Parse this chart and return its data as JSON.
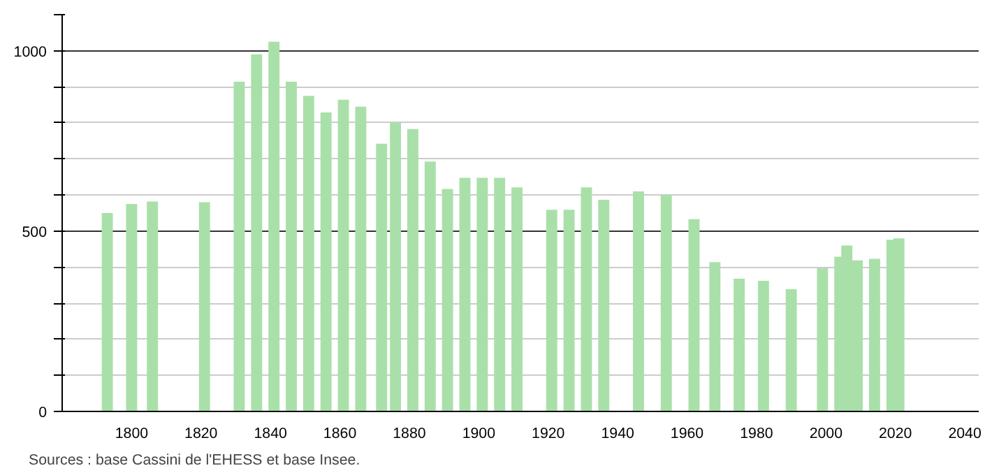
{
  "chart_data": {
    "type": "bar",
    "x": [
      1793,
      1800,
      1806,
      1821,
      1831,
      1836,
      1841,
      1846,
      1851,
      1856,
      1861,
      1866,
      1872,
      1876,
      1881,
      1886,
      1891,
      1896,
      1901,
      1906,
      1911,
      1921,
      1926,
      1931,
      1936,
      1946,
      1954,
      1962,
      1968,
      1975,
      1982,
      1990,
      1999,
      2004,
      2006,
      2009,
      2014,
      2019,
      2021
    ],
    "values": [
      550,
      575,
      582,
      580,
      914,
      990,
      1025,
      914,
      875,
      829,
      864,
      845,
      742,
      800,
      783,
      693,
      617,
      648,
      648,
      648,
      621,
      559,
      559,
      621,
      587,
      610,
      601,
      533,
      414,
      368,
      362,
      339,
      397,
      429,
      460,
      419,
      423,
      476,
      480
    ],
    "color": "#a9e0a9",
    "xlim": [
      1780,
      2044
    ],
    "ylim": [
      0,
      1100
    ],
    "xticks": [
      1800,
      1820,
      1840,
      1860,
      1880,
      1900,
      1920,
      1940,
      1960,
      1980,
      2000,
      2020,
      2040
    ],
    "yticks": [
      0,
      {
        "value": 100,
        "label": null
      },
      {
        "value": 200,
        "label": null
      },
      {
        "value": 300,
        "label": null
      },
      {
        "value": 400,
        "label": null
      },
      500,
      {
        "value": 600,
        "label": null
      },
      {
        "value": 700,
        "label": null
      },
      {
        "value": 800,
        "label": null
      },
      {
        "value": 900,
        "label": null
      },
      1000,
      {
        "value": 1100,
        "label": null
      }
    ],
    "grid": "y",
    "annotations": [
      "Sources : base Cassini de l'EHESS et base Insee."
    ]
  }
}
